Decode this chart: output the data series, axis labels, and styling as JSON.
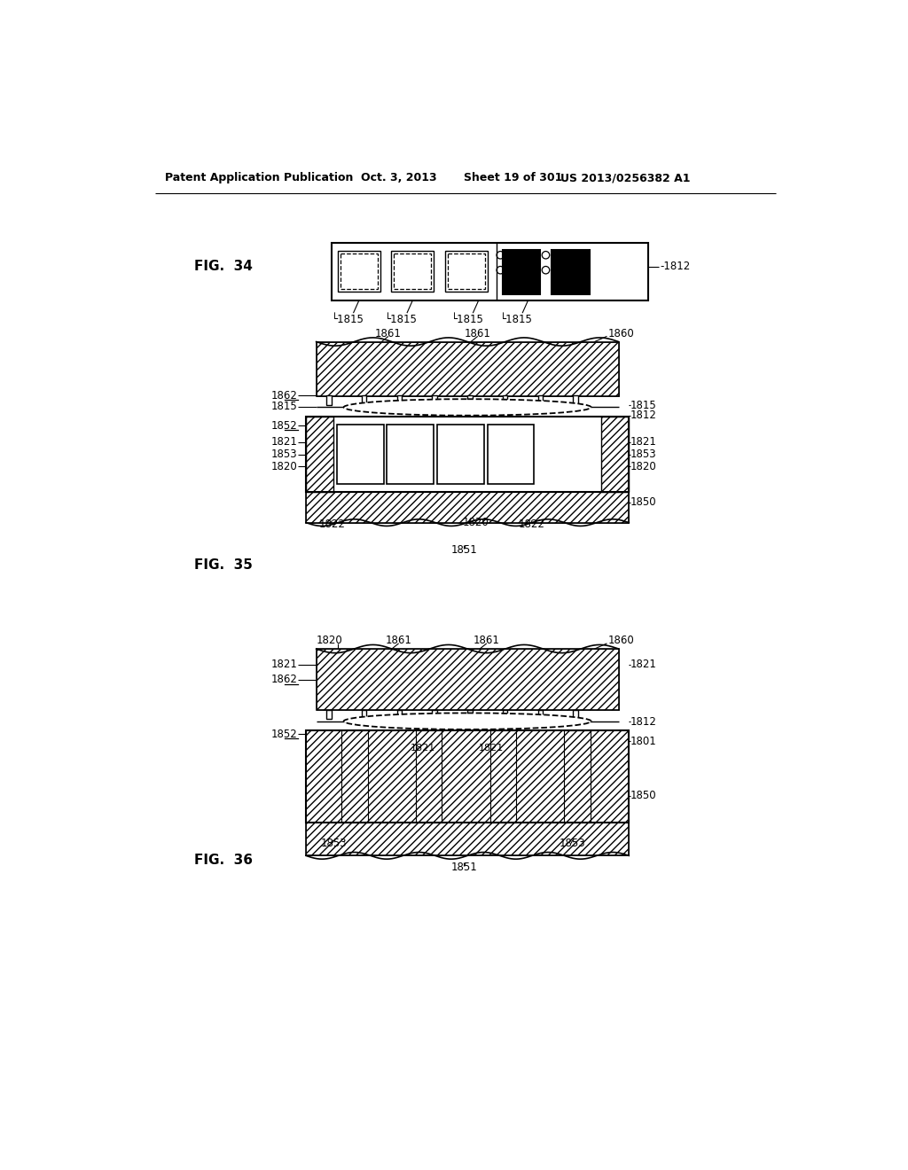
{
  "bg_color": "#ffffff",
  "header_text": "Patent Application Publication",
  "header_date": "Oct. 3, 2013",
  "header_sheet": "Sheet 19 of 301",
  "header_patent": "US 2013/0256382 A1",
  "fig34_label": "FIG.  34",
  "fig35_label": "FIG.  35",
  "fig36_label": "FIG.  36"
}
